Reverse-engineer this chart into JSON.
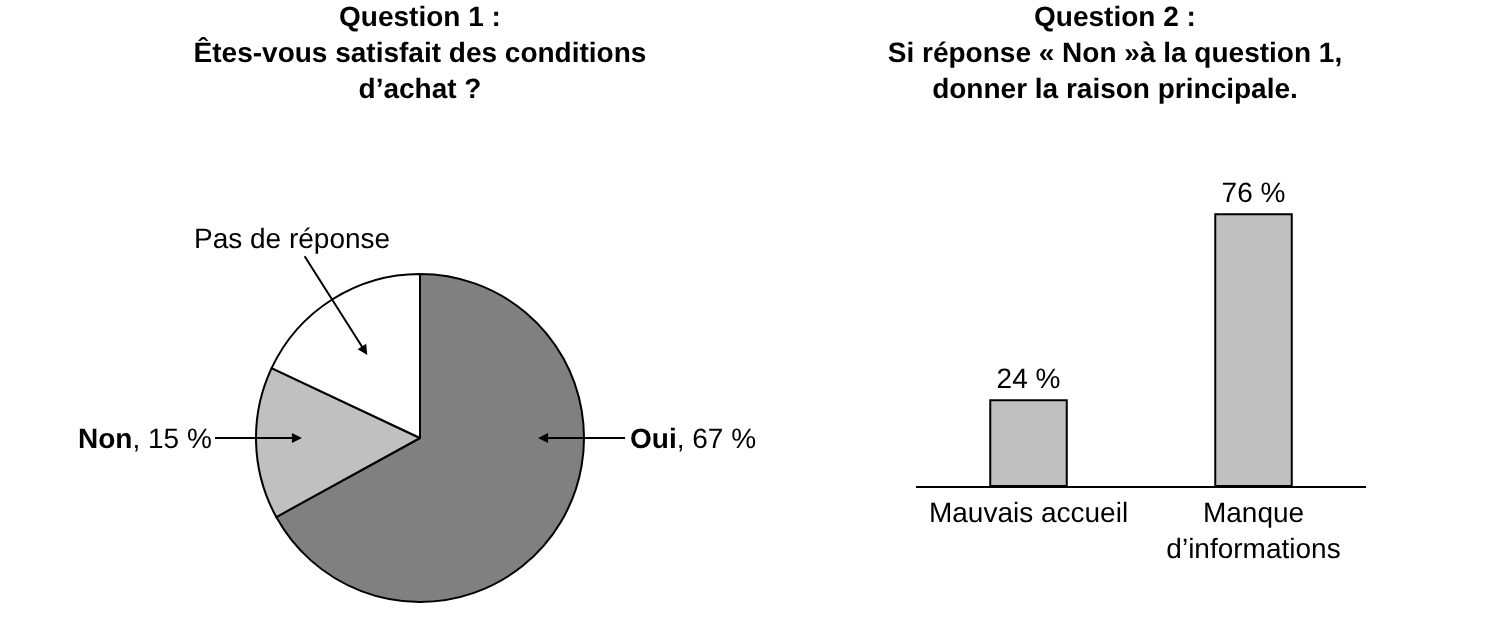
{
  "chart_data": [
    {
      "type": "pie",
      "title": "Question 1 :\nÊtes-vous satisfait des conditions\nd’achat ?",
      "categories": [
        "Oui",
        "Non",
        "Pas de réponse"
      ],
      "values": [
        67,
        15,
        18
      ],
      "colors": [
        "#808080",
        "#c0c0c0",
        "#ffffff"
      ],
      "value_labels": [
        ", 67 %",
        ", 15 %",
        null
      ]
    },
    {
      "type": "bar",
      "title": "Question 2 :\nSi réponse « Non »à la question 1,\ndonner la raison principale.",
      "categories": [
        "Mauvais accueil",
        "Manque d’informations"
      ],
      "values": [
        24,
        76
      ],
      "color": "#c0c0c0",
      "value_labels": [
        "24 %",
        "76 %"
      ]
    }
  ]
}
